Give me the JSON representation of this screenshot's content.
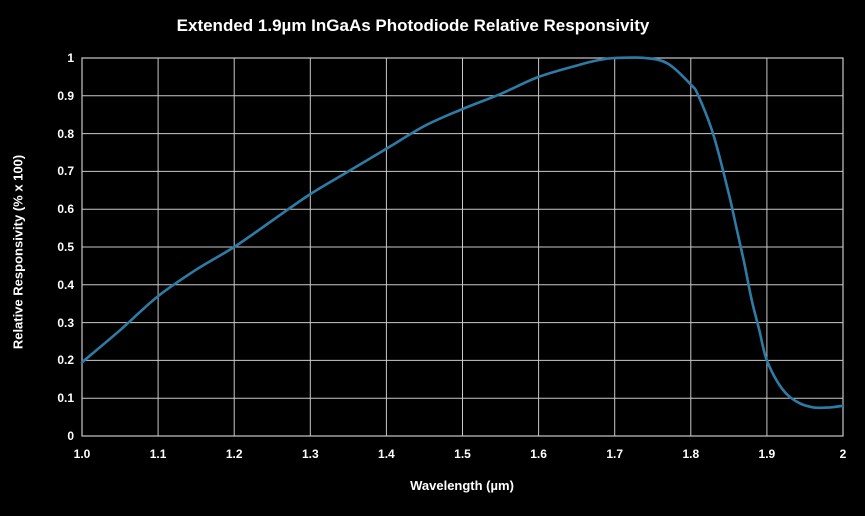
{
  "chart_data": {
    "type": "line",
    "title": "Extended 1.9µm InGaAs Photodiode Relative Responsivity",
    "xlabel": "Wavelength (µm)",
    "ylabel": "Relative Responsivity (% x 100)",
    "xlim": [
      1.0,
      2.0
    ],
    "ylim": [
      0,
      1
    ],
    "grid": true,
    "legend_position": "none",
    "colors": {
      "background": "#000000",
      "text": "#ffffff",
      "grid": "#c9c9c9",
      "line": "#2e7ba5"
    },
    "x_ticks": [
      {
        "value": 1.0,
        "label": "1.0"
      },
      {
        "value": 1.1,
        "label": "1.1"
      },
      {
        "value": 1.2,
        "label": "1.2"
      },
      {
        "value": 1.3,
        "label": "1.3"
      },
      {
        "value": 1.4,
        "label": "1.4"
      },
      {
        "value": 1.5,
        "label": "1.5"
      },
      {
        "value": 1.6,
        "label": "1.6"
      },
      {
        "value": 1.7,
        "label": "1.7"
      },
      {
        "value": 1.8,
        "label": "1.8"
      },
      {
        "value": 1.9,
        "label": "1.9"
      },
      {
        "value": 2.0,
        "label": "2"
      }
    ],
    "y_ticks": [
      {
        "value": 0,
        "label": "0"
      },
      {
        "value": 0.1,
        "label": "0.1"
      },
      {
        "value": 0.2,
        "label": "0.2"
      },
      {
        "value": 0.3,
        "label": "0.3"
      },
      {
        "value": 0.4,
        "label": "0.4"
      },
      {
        "value": 0.5,
        "label": "0.5"
      },
      {
        "value": 0.6,
        "label": "0.6"
      },
      {
        "value": 0.7,
        "label": "0.7"
      },
      {
        "value": 0.8,
        "label": "0.8"
      },
      {
        "value": 0.9,
        "label": "0.9"
      },
      {
        "value": 1,
        "label": "1"
      }
    ],
    "series": [
      {
        "name": "Relative Responsivity",
        "x": [
          1.0,
          1.05,
          1.1,
          1.15,
          1.2,
          1.25,
          1.3,
          1.35,
          1.4,
          1.45,
          1.5,
          1.55,
          1.6,
          1.65,
          1.68,
          1.7,
          1.74,
          1.77,
          1.8,
          1.81,
          1.83,
          1.85,
          1.86,
          1.87,
          1.88,
          1.89,
          1.9,
          1.92,
          1.94,
          1.96,
          1.98,
          2.0
        ],
        "y": [
          0.195,
          0.28,
          0.37,
          0.44,
          0.5,
          0.57,
          0.64,
          0.7,
          0.76,
          0.82,
          0.865,
          0.905,
          0.95,
          0.98,
          0.995,
          1.0,
          1.0,
          0.985,
          0.93,
          0.9,
          0.795,
          0.64,
          0.55,
          0.46,
          0.36,
          0.28,
          0.2,
          0.125,
          0.09,
          0.076,
          0.075,
          0.08
        ]
      }
    ]
  }
}
